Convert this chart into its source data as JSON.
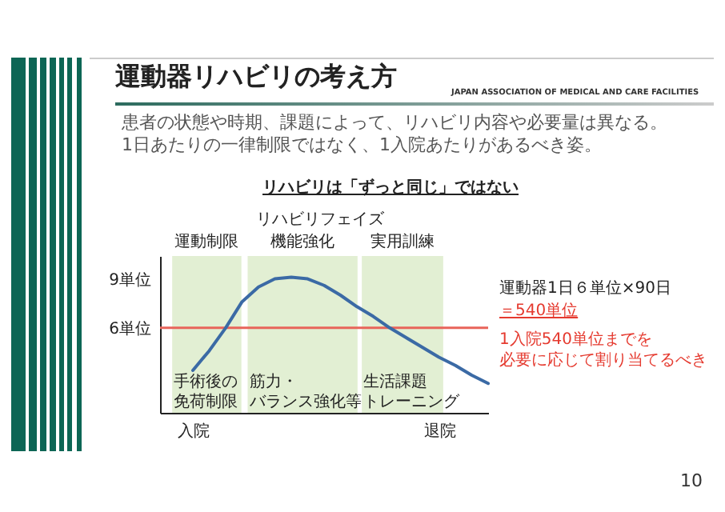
{
  "chart_data": {
    "type": "line",
    "title": "運動器リハビリの考え方",
    "subtitle": "患者の状態や時期、課題によって、リハビリ内容や必要量は異なる。\n1日あたりの一律制限ではなく、1入院あたりがあるべき姿。",
    "annotations": [
      "JAPAN ASSOCIATION OF MEDICAL AND CARE FACILITIES",
      "リハビリは「ずっと同じ」ではない",
      "リハビリフェイズ",
      "運動制限",
      "機能強化",
      "実用訓練",
      "運動器1日６単位×90日",
      "＝540単位",
      "1入院540単位までを",
      "必要に応じて割り当てるべき",
      "10",
      "手術後の",
      "免荷制限",
      "筋力・",
      "バランス強化等",
      "生活課題",
      "トレーニング"
    ],
    "categories": [
      null,
      null,
      "入院",
      null,
      null,
      null,
      null,
      null,
      null,
      null,
      null,
      null,
      null,
      null,
      null,
      null,
      null,
      "退院",
      null,
      null,
      null
    ],
    "series": [
      {
        "color": "#3b6aa5",
        "values": [
          null,
          null,
          3.4,
          4.6,
          6.0,
          7.6,
          8.5,
          9.0,
          9.1,
          9.0,
          8.6,
          8.0,
          7.3,
          6.7,
          6.0,
          5.4,
          4.8,
          4.2,
          3.7,
          3.1,
          2.6
        ]
      }
    ],
    "ylim": [
      0.8,
      10.4
    ],
    "yticks": [
      {
        "value": 6,
        "label": "6単位"
      },
      {
        "value": 9,
        "label": "9単位"
      }
    ],
    "ref_lines": [
      {
        "axis": "y",
        "value": 6,
        "color": "#e8645a"
      }
    ],
    "grid": false
  }
}
